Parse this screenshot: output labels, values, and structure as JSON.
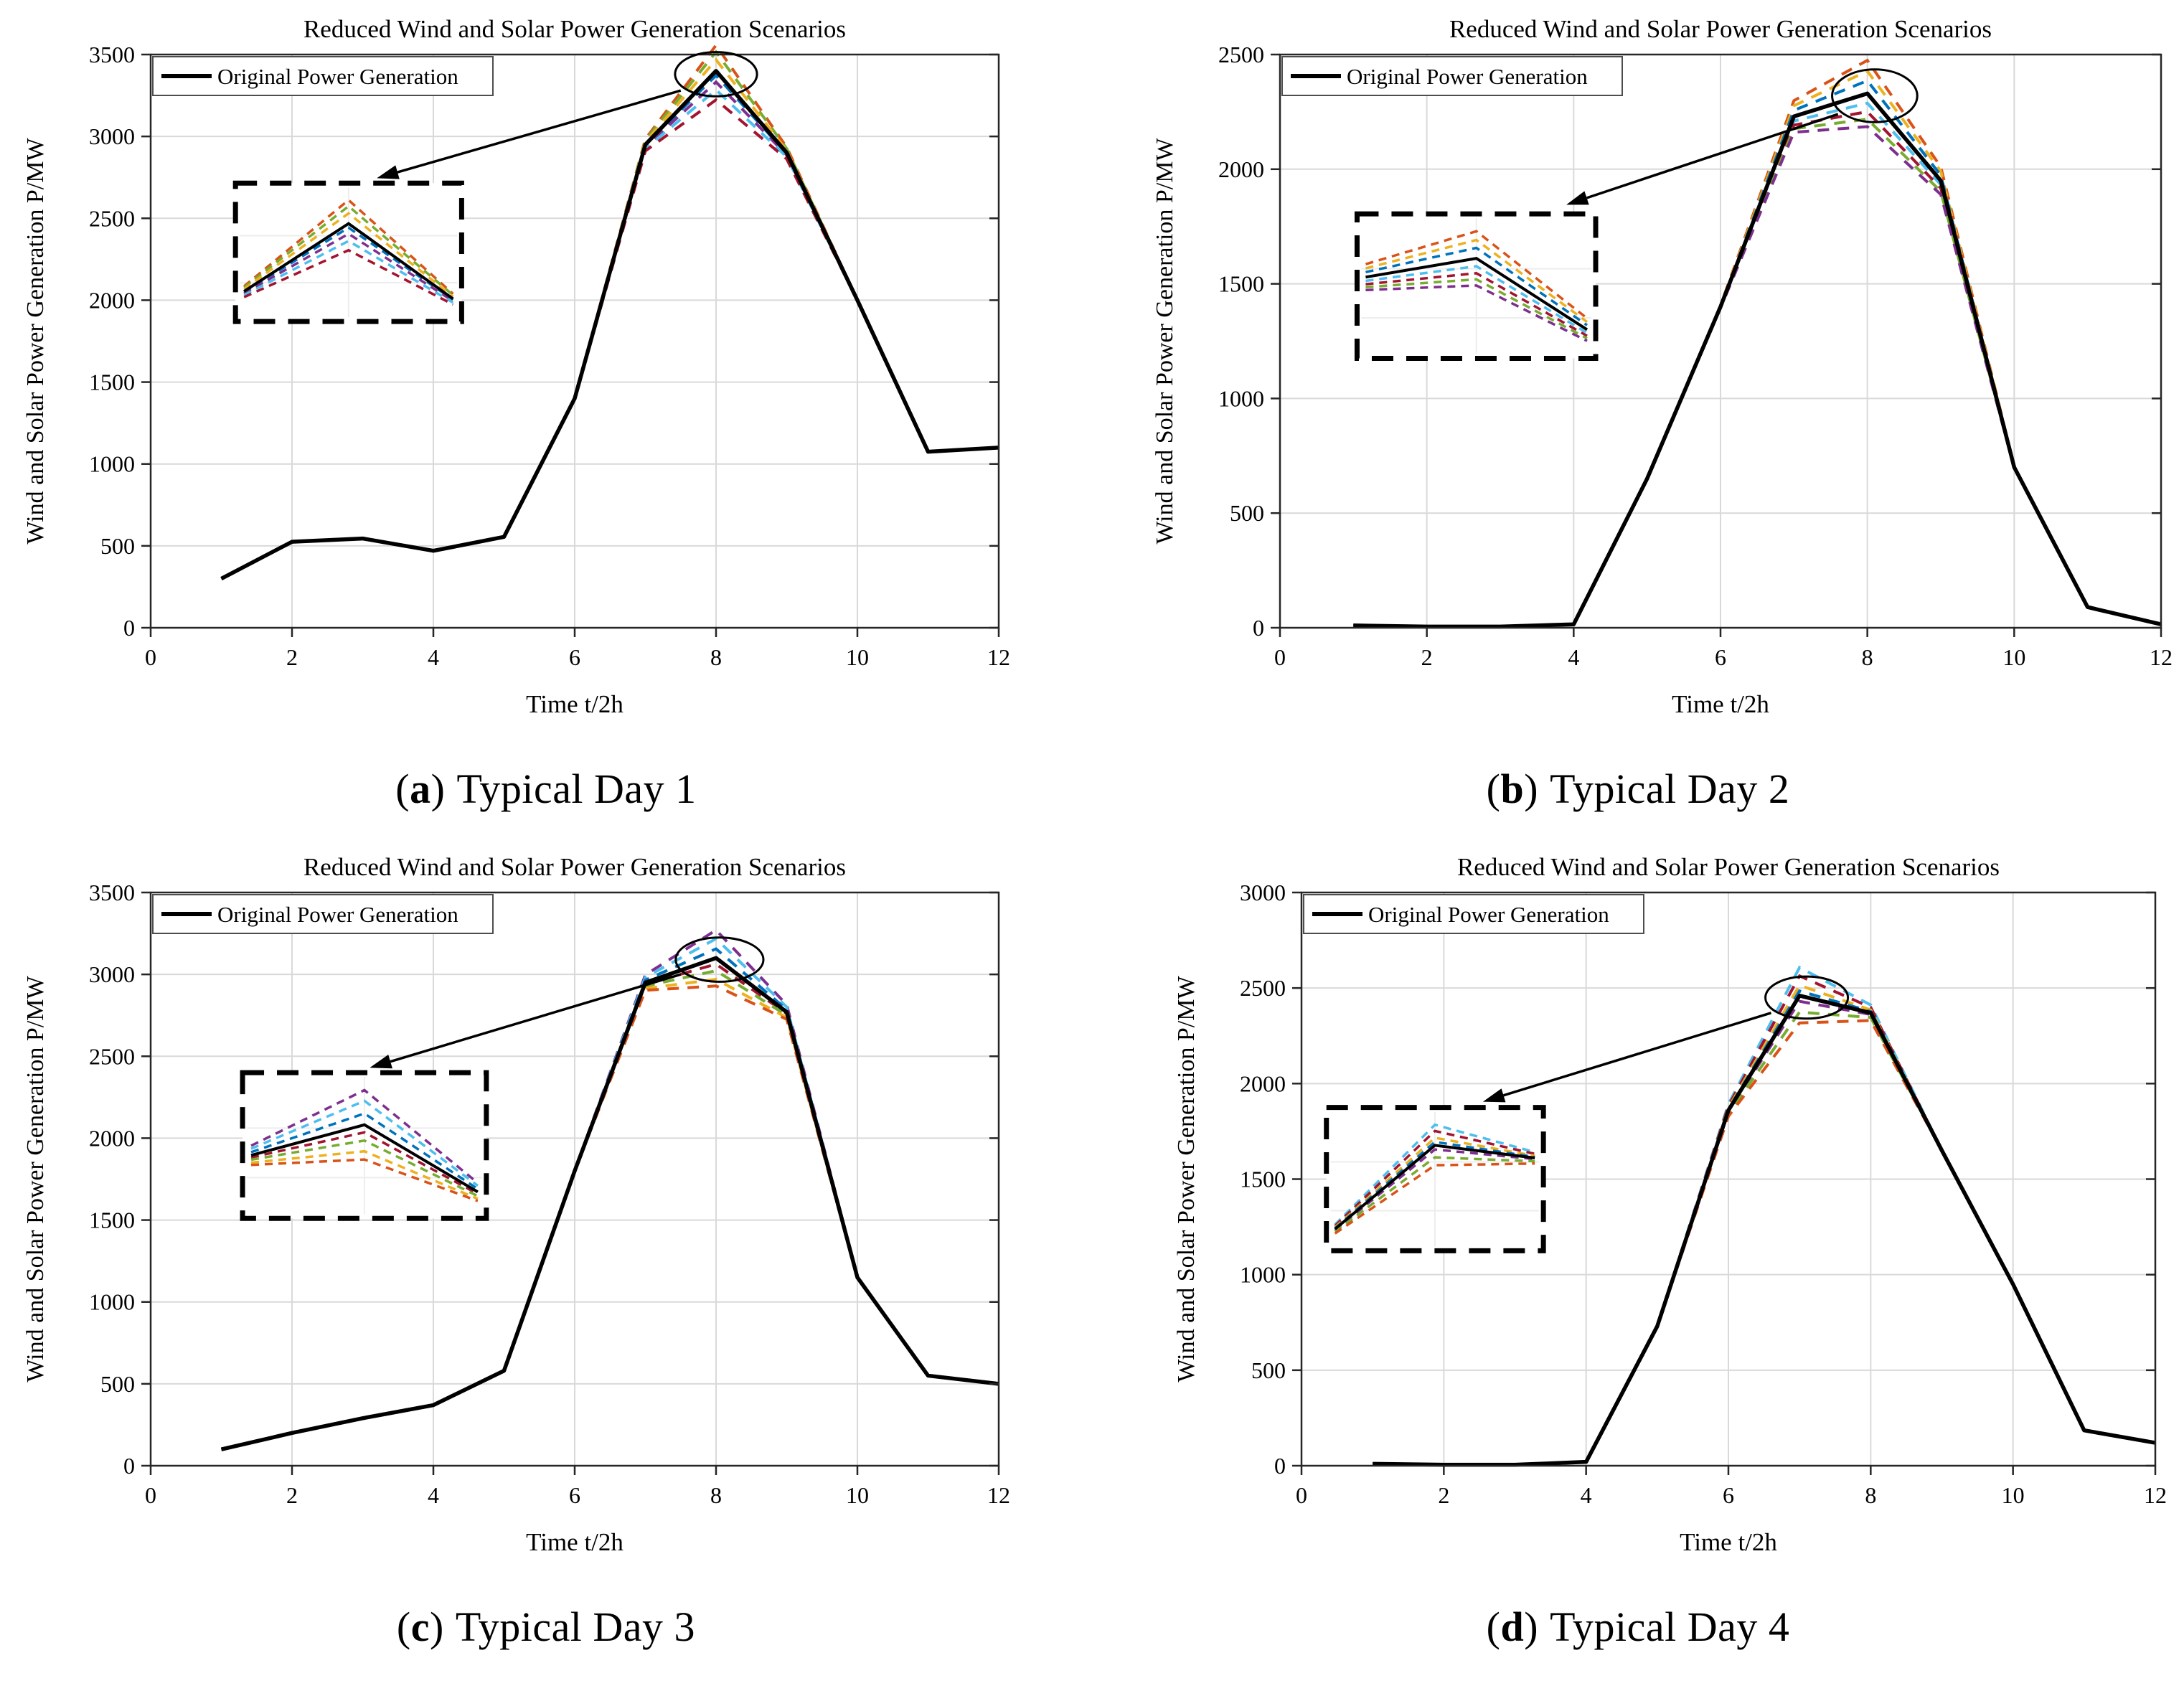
{
  "chart_data": [
    {
      "id": "a",
      "type": "line",
      "title": "Reduced Wind and Solar Power Generation Scenarios",
      "legend_label": "Original Power Generation",
      "xlabel": "Time t/2h",
      "ylabel": "Wind and Solar Power Generation P/MW",
      "xlim": [
        0,
        12
      ],
      "ylim": [
        0,
        3500
      ],
      "ytick_step": 500,
      "xticks": [
        0,
        2,
        4,
        6,
        8,
        10,
        12
      ],
      "grid": true,
      "legend_position": "top-left",
      "x": [
        1,
        2,
        3,
        4,
        5,
        6,
        7,
        8,
        9,
        10,
        11,
        12
      ],
      "series": [
        {
          "name": "Original Power Generation",
          "color": "#000000",
          "style": "solid",
          "values": [
            300,
            525,
            545,
            470,
            555,
            1400,
            2950,
            3400,
            2900,
            2000,
            1075,
            1100
          ]
        }
      ],
      "scenarios_note": "reduced scenario curves = original curve scaled by (1+offset) near the peak",
      "scenario_style": "dashed",
      "peak_x": 8,
      "spread_width": 0.85,
      "scenarios": [
        {
          "color": "#D95319",
          "offset": 0.046
        },
        {
          "color": "#77AC30",
          "offset": 0.034
        },
        {
          "color": "#EDB120",
          "offset": 0.02
        },
        {
          "color": "#0072BD",
          "offset": -0.008
        },
        {
          "color": "#7E2F8E",
          "offset": -0.02
        },
        {
          "color": "#4DBEEE",
          "offset": -0.034
        },
        {
          "color": "#A2142F",
          "offset": -0.052
        }
      ],
      "ellipse": {
        "cx": 8.0,
        "cy": 3380,
        "rx": 0.58,
        "ry": 135
      },
      "arrow": {
        "x1": 7.5,
        "y1": 3280,
        "x2": 3.2,
        "y2": 2745
      },
      "inset": {
        "x0": 1.2,
        "x1": 4.4,
        "y0": 1870,
        "y1": 2715
      },
      "zoom_window": [
        7,
        9
      ],
      "caption": {
        "pre": "(",
        "letter": "a",
        "post": ")",
        "text": "Typical Day 1"
      }
    },
    {
      "id": "b",
      "type": "line",
      "title": "Reduced Wind and Solar Power Generation Scenarios",
      "legend_label": "Original Power Generation",
      "xlabel": "Time t/2h",
      "ylabel": "Wind and Solar Power Generation P/MW",
      "xlim": [
        0,
        12
      ],
      "ylim": [
        0,
        2500
      ],
      "ytick_step": 500,
      "xticks": [
        0,
        2,
        4,
        6,
        8,
        10,
        12
      ],
      "grid": true,
      "legend_position": "top-left",
      "x": [
        1,
        2,
        3,
        4,
        5,
        6,
        7,
        8,
        9,
        10,
        11,
        12
      ],
      "series": [
        {
          "name": "Original Power Generation",
          "color": "#000000",
          "style": "solid",
          "values": [
            10,
            5,
            5,
            15,
            650,
            1400,
            2230,
            2330,
            1950,
            700,
            90,
            15
          ]
        }
      ],
      "scenarios_note": "reduced scenario curves = original curve scaled by (1+offset) near the peak",
      "scenario_style": "dashed",
      "peak_x": 8,
      "spread_width": 1.2,
      "scenarios": [
        {
          "color": "#D95319",
          "offset": 0.062
        },
        {
          "color": "#EDB120",
          "offset": 0.042
        },
        {
          "color": "#0072BD",
          "offset": 0.024
        },
        {
          "color": "#4DBEEE",
          "offset": -0.018
        },
        {
          "color": "#A2142F",
          "offset": -0.034
        },
        {
          "color": "#77AC30",
          "offset": -0.048
        },
        {
          "color": "#7E2F8E",
          "offset": -0.062
        }
      ],
      "ellipse": {
        "cx": 8.1,
        "cy": 2320,
        "rx": 0.58,
        "ry": 115
      },
      "arrow": {
        "x1": 7.6,
        "y1": 2240,
        "x2": 3.9,
        "y2": 1845
      },
      "inset": {
        "x0": 1.05,
        "x1": 4.3,
        "y0": 1175,
        "y1": 1805
      },
      "zoom_window": [
        7,
        9
      ],
      "caption": {
        "pre": "(",
        "letter": "b",
        "post": ")",
        "text": "Typical Day 2"
      }
    },
    {
      "id": "c",
      "type": "line",
      "title": "Reduced Wind and Solar Power Generation Scenarios",
      "legend_label": "Original Power Generation",
      "xlabel": "Time t/2h",
      "ylabel": "Wind and Solar Power Generation P/MW",
      "xlim": [
        0,
        12
      ],
      "ylim": [
        0,
        3500
      ],
      "ytick_step": 500,
      "xticks": [
        0,
        2,
        4,
        6,
        8,
        10,
        12
      ],
      "grid": true,
      "legend_position": "top-left",
      "x": [
        1,
        2,
        3,
        4,
        5,
        6,
        7,
        8,
        9,
        10,
        11,
        12
      ],
      "series": [
        {
          "name": "Original Power Generation",
          "color": "#000000",
          "style": "solid",
          "values": [
            100,
            200,
            290,
            370,
            580,
            1800,
            2950,
            3100,
            2770,
            1150,
            550,
            500
          ]
        }
      ],
      "scenarios_note": "reduced scenario curves = original curve scaled by (1+offset) near the peak",
      "scenario_style": "dashed",
      "peak_x": 8,
      "spread_width": 0.9,
      "scenarios": [
        {
          "color": "#7E2F8E",
          "offset": 0.055
        },
        {
          "color": "#4DBEEE",
          "offset": 0.038
        },
        {
          "color": "#0072BD",
          "offset": 0.018
        },
        {
          "color": "#A2142F",
          "offset": -0.012
        },
        {
          "color": "#77AC30",
          "offset": -0.025
        },
        {
          "color": "#EDB120",
          "offset": -0.042
        },
        {
          "color": "#D95319",
          "offset": -0.055
        }
      ],
      "ellipse": {
        "cx": 8.05,
        "cy": 3090,
        "rx": 0.62,
        "ry": 135
      },
      "arrow": {
        "x1": 7.5,
        "y1": 3000,
        "x2": 3.1,
        "y2": 2430
      },
      "inset": {
        "x0": 1.3,
        "x1": 4.75,
        "y0": 1510,
        "y1": 2400
      },
      "zoom_window": [
        7,
        9
      ],
      "caption": {
        "pre": "(",
        "letter": "c",
        "post": ")",
        "text": "Typical Day 3"
      }
    },
    {
      "id": "d",
      "type": "line",
      "title": "Reduced Wind and Solar Power Generation Scenarios",
      "legend_label": "Original Power Generation",
      "xlabel": "Time t/2h",
      "ylabel": "Wind and Solar Power Generation P/MW",
      "xlim": [
        0,
        12
      ],
      "ylim": [
        0,
        3000
      ],
      "ytick_step": 500,
      "xticks": [
        0,
        2,
        4,
        6,
        8,
        10,
        12
      ],
      "grid": true,
      "legend_position": "top-left",
      "x": [
        1,
        2,
        3,
        4,
        5,
        6,
        7,
        8,
        9,
        10,
        11,
        12
      ],
      "series": [
        {
          "name": "Original Power Generation",
          "color": "#000000",
          "style": "solid",
          "values": [
            10,
            5,
            5,
            20,
            730,
            1860,
            2460,
            2370,
            1650,
            950,
            185,
            120
          ]
        }
      ],
      "scenarios_note": "reduced scenario curves = original curve scaled by (1+offset) near the peak",
      "scenario_style": "dashed",
      "peak_x": 7,
      "spread_width": 0.9,
      "scenarios": [
        {
          "color": "#4DBEEE",
          "offset": 0.06
        },
        {
          "color": "#A2142F",
          "offset": 0.042
        },
        {
          "color": "#EDB120",
          "offset": 0.022
        },
        {
          "color": "#0072BD",
          "offset": 0.01
        },
        {
          "color": "#7E2F8E",
          "offset": -0.012
        },
        {
          "color": "#77AC30",
          "offset": -0.035
        },
        {
          "color": "#D95319",
          "offset": -0.058
        }
      ],
      "ellipse": {
        "cx": 7.1,
        "cy": 2450,
        "rx": 0.58,
        "ry": 110
      },
      "arrow": {
        "x1": 6.6,
        "y1": 2370,
        "x2": 2.55,
        "y2": 1905
      },
      "inset": {
        "x0": 0.35,
        "x1": 3.4,
        "y0": 1125,
        "y1": 1875
      },
      "zoom_window": [
        6,
        8
      ],
      "caption": {
        "pre": "(",
        "letter": "d",
        "post": ")",
        "text": "Typical Day 4"
      }
    }
  ]
}
